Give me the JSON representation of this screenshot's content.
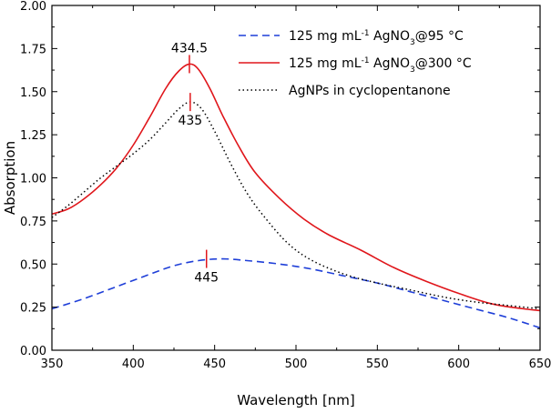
{
  "chart_data": {
    "type": "line",
    "title": "",
    "xlabel": "Wavelength [nm]",
    "ylabel": "Absorption",
    "xlim": [
      350,
      650
    ],
    "ylim": [
      0,
      2.0
    ],
    "grid": false,
    "legend_position": "top-right",
    "x_ticks": [
      "350",
      "400",
      "450",
      "500",
      "550",
      "600",
      "650"
    ],
    "y_ticks": [
      "0.00",
      "0.25",
      "0.50",
      "0.75",
      "1.00",
      "1.25",
      "1.50",
      "1.75",
      "2.00"
    ],
    "series": [
      {
        "name": "125 mg mL-1 AgNO3 @ 95 °C",
        "legend": {
          "pre": "125 mg mL",
          "sup": "-1",
          "mid": " AgNO",
          "sub": "3",
          "post": "@95 °C"
        },
        "color": "#1f3fd8",
        "style": "dashed",
        "x": [
          350,
          370,
          390,
          410,
          425,
          440,
          455,
          470,
          490,
          510,
          530,
          550,
          570,
          590,
          610,
          630,
          650
        ],
        "y": [
          0.24,
          0.3,
          0.37,
          0.44,
          0.49,
          0.52,
          0.53,
          0.52,
          0.5,
          0.47,
          0.43,
          0.39,
          0.34,
          0.29,
          0.24,
          0.19,
          0.13
        ]
      },
      {
        "name": "125 mg mL-1 AgNO3 @ 300 °C",
        "legend": {
          "pre": "125 mg mL",
          "sup": "-1",
          "mid": " AgNO",
          "sub": "3",
          "post": "@300 °C"
        },
        "color": "#e0161b",
        "style": "solid",
        "x": [
          350,
          360,
          370,
          380,
          390,
          400,
          410,
          420,
          428,
          434.5,
          440,
          447,
          455,
          465,
          475,
          490,
          505,
          520,
          540,
          560,
          580,
          600,
          620,
          640,
          650
        ],
        "y": [
          0.79,
          0.82,
          0.88,
          0.96,
          1.06,
          1.19,
          1.35,
          1.52,
          1.62,
          1.66,
          1.63,
          1.52,
          1.36,
          1.18,
          1.03,
          0.88,
          0.76,
          0.67,
          0.58,
          0.48,
          0.4,
          0.33,
          0.27,
          0.24,
          0.23
        ]
      },
      {
        "name": "AgNPs in cyclopentanone",
        "legend": {
          "pre": "AgNPs in cyclopentanone",
          "sup": "",
          "mid": "",
          "sub": "",
          "post": ""
        },
        "color": "#000000",
        "style": "dotted",
        "x": [
          350,
          360,
          370,
          380,
          390,
          400,
          410,
          420,
          428,
          435,
          442,
          450,
          460,
          470,
          480,
          495,
          510,
          530,
          550,
          570,
          590,
          610,
          630,
          650
        ],
        "y": [
          0.77,
          0.84,
          0.92,
          1.0,
          1.07,
          1.14,
          1.22,
          1.32,
          1.4,
          1.44,
          1.4,
          1.27,
          1.08,
          0.91,
          0.78,
          0.62,
          0.52,
          0.44,
          0.39,
          0.35,
          0.31,
          0.28,
          0.26,
          0.24
        ]
      }
    ],
    "annotations": [
      {
        "text": "434.5",
        "x": 434.5,
        "y": 1.66,
        "color": "#e0161b",
        "label_side": "above"
      },
      {
        "text": "435",
        "x": 435,
        "y": 1.44,
        "color": "#e0161b",
        "label_side": "below"
      },
      {
        "text": "445",
        "x": 445,
        "y": 0.53,
        "color": "#e0161b",
        "label_side": "below"
      }
    ]
  }
}
